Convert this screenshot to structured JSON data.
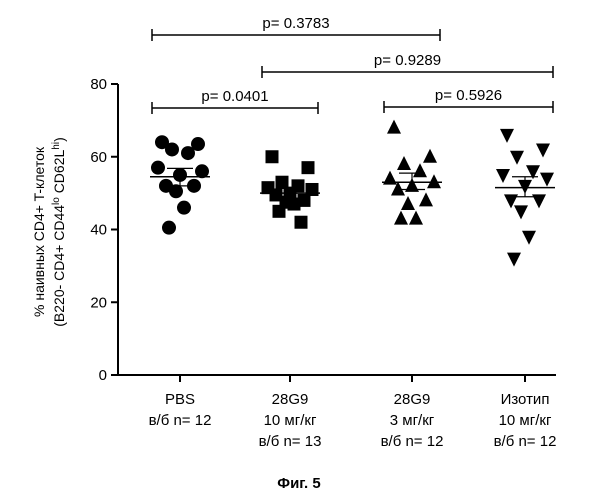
{
  "chart_data": {
    "type": "scatter",
    "title": "",
    "caption": "Фиг. 5",
    "ylabel_line1": "% наивных CD4+ T-клеток",
    "ylabel_line2_parts": [
      "(B220- CD4+ CD44",
      "lo",
      " CD62L",
      "hi",
      ")"
    ],
    "ylim": [
      0,
      80
    ],
    "yticks": [
      0,
      20,
      40,
      60,
      80
    ],
    "grid": false,
    "groups": [
      {
        "label_lines": [
          "PBS",
          "в/б  n= 12"
        ],
        "marker": "circle",
        "mean": 54.5,
        "sem_high": 56.8,
        "sem_low": 52.0,
        "values": [
          64,
          63.5,
          62,
          61,
          57,
          56,
          55,
          52,
          52,
          50.5,
          46,
          40.5
        ]
      },
      {
        "label_lines": [
          "28G9",
          "10 мг/кг",
          "в/б  n= 13"
        ],
        "marker": "square",
        "mean": 50.0,
        "sem_high": 51.3,
        "sem_low": 48.5,
        "values": [
          60,
          57,
          53,
          52,
          51.5,
          51,
          50,
          49.5,
          48,
          47.5,
          47,
          45,
          42
        ]
      },
      {
        "label_lines": [
          "28G9",
          "3 мг/кг",
          "в/б  n= 12"
        ],
        "marker": "triangle-up",
        "mean": 53.0,
        "sem_high": 55.5,
        "sem_low": 51.0,
        "values": [
          68,
          60,
          58,
          56,
          54,
          53,
          52,
          51,
          48,
          47,
          43,
          43
        ]
      },
      {
        "label_lines": [
          "Изотип",
          "10 мг/кг",
          "в/б  n= 12"
        ],
        "marker": "triangle-down",
        "mean": 51.5,
        "sem_high": 54.5,
        "sem_low": 49.0,
        "values": [
          66,
          62,
          60,
          56,
          55,
          54,
          52,
          48,
          48,
          45,
          38,
          32
        ]
      }
    ],
    "comparisons": [
      {
        "from": 0,
        "to": 1,
        "label": "p= 0.0401"
      },
      {
        "from": 2,
        "to": 3,
        "label": "p= 0.5926"
      },
      {
        "from": 1,
        "to": 3,
        "label": "p= 0.9289"
      },
      {
        "from": 0,
        "to": 2,
        "label": "p= 0.3783"
      }
    ]
  }
}
